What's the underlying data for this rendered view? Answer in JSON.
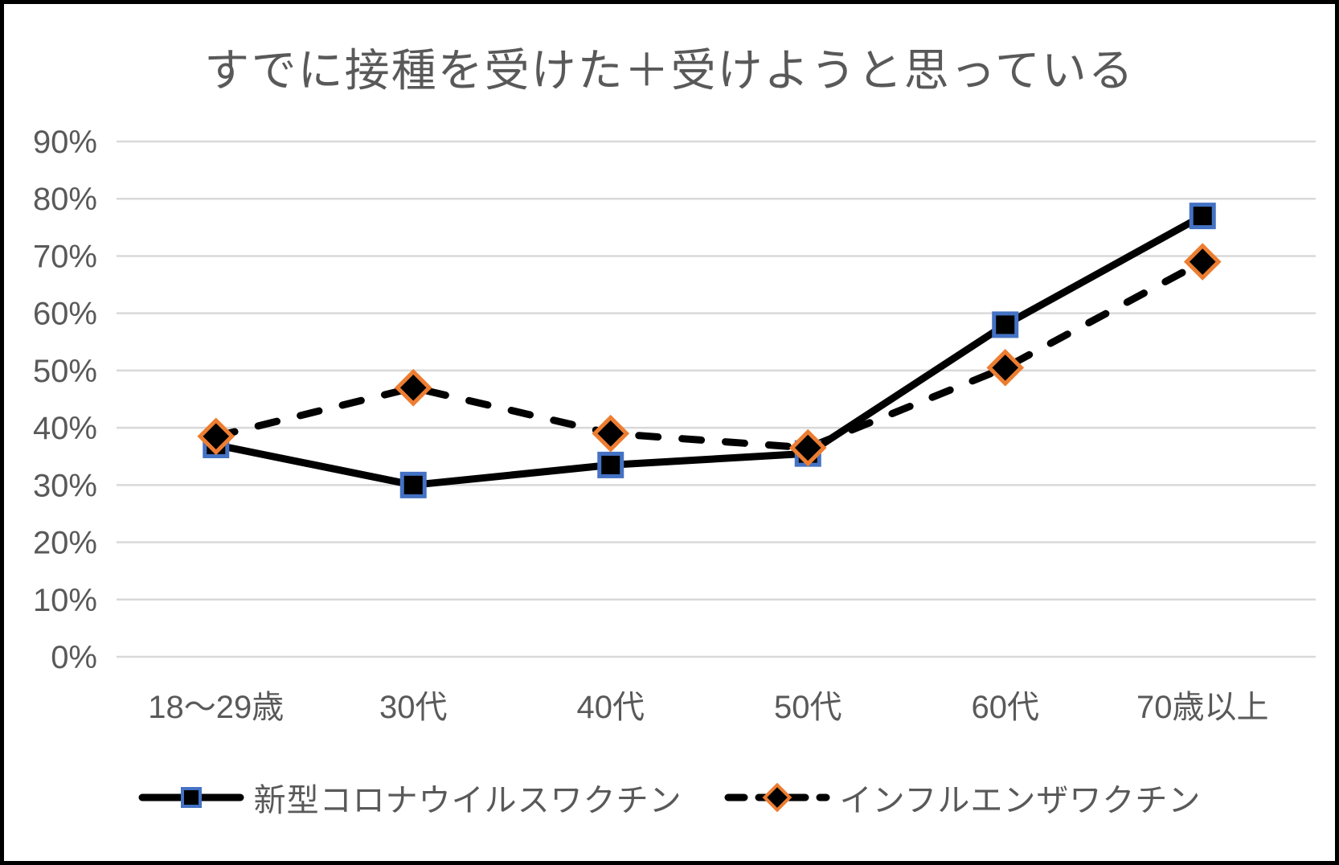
{
  "window": {
    "background": "#FFFFFF",
    "border_color": "#000000"
  },
  "chart_data": {
    "type": "line",
    "title": "すでに接種を受けた＋受けようと思っている",
    "categories": [
      "18〜29歳",
      "30代",
      "40代",
      "50代",
      "60代",
      "70歳以上"
    ],
    "series": [
      {
        "name": "新型コロナウイルスワクチン",
        "values": [
          37,
          30,
          33.5,
          35.5,
          58,
          77
        ],
        "line_style": "solid",
        "line_color": "#000000",
        "marker": "square",
        "marker_fill": "#000000",
        "marker_border": "#4472C4"
      },
      {
        "name": "インフルエンザワクチン",
        "values": [
          38.5,
          47,
          39,
          36.5,
          50.5,
          69
        ],
        "line_style": "dashed",
        "line_color": "#000000",
        "marker": "diamond",
        "marker_fill": "#000000",
        "marker_border": "#ED7D31"
      }
    ],
    "ylim": [
      0,
      90
    ],
    "yticks": [
      0,
      10,
      20,
      30,
      40,
      50,
      60,
      70,
      80,
      90
    ],
    "ytick_suffix": "%",
    "xlabel": "",
    "ylabel": "",
    "grid": "horizontal",
    "gridline_color": "#D9D9D9",
    "text_color": "#595959",
    "legend_position": "bottom"
  }
}
